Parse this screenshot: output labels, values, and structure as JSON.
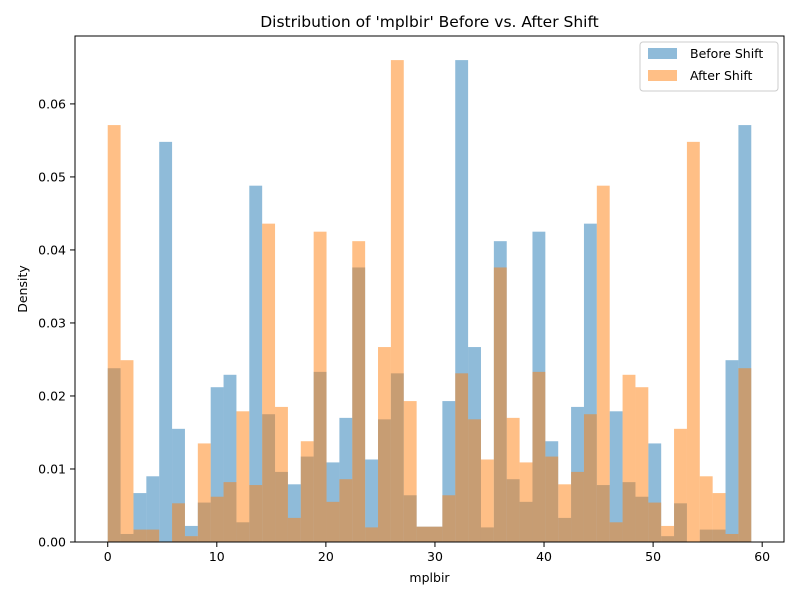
{
  "chart_data": {
    "type": "bar",
    "title": "Distribution of 'mplbir' Before vs. After Shift",
    "xlabel": "mplbir",
    "ylabel": "Density",
    "xlim": [
      -3.0,
      62.0
    ],
    "ylim": [
      0,
      0.0693
    ],
    "grid": false,
    "legend_position": "top-right",
    "bin_edges": [
      0.0,
      1.18,
      2.36,
      3.54,
      4.72,
      5.9,
      7.08,
      8.26,
      9.44,
      10.62,
      11.8,
      12.98,
      14.16,
      15.34,
      16.52,
      17.7,
      18.88,
      20.06,
      21.24,
      22.42,
      23.6,
      24.78,
      25.96,
      27.14,
      28.32,
      29.5,
      30.68,
      31.86,
      33.04,
      34.22,
      35.4,
      36.58,
      37.76,
      38.94,
      40.12,
      41.3,
      42.48,
      43.66,
      44.84,
      46.02,
      47.2,
      48.38,
      49.56,
      50.74,
      51.92,
      53.1,
      54.28,
      55.46,
      56.64,
      57.82,
      59.0
    ],
    "series": [
      {
        "name": "Before Shift",
        "color": "#1f77b4",
        "values": [
          0.0238,
          0.0011,
          0.0067,
          0.009,
          0.0548,
          0.0155,
          0.0022,
          0.0054,
          0.0212,
          0.0229,
          0.0027,
          0.0488,
          0.0175,
          0.0096,
          0.0079,
          0.0117,
          0.0233,
          0.0109,
          0.017,
          0.0376,
          0.0113,
          0.0168,
          0.0231,
          0.0064,
          0.0021,
          0.0021,
          0.0193,
          0.066,
          0.0267,
          0.002,
          0.0412,
          0.0086,
          0.0055,
          0.0425,
          0.0138,
          0.0033,
          0.0185,
          0.0436,
          0.0078,
          0.0179,
          0.0082,
          0.0062,
          0.0135,
          0.0008,
          0.0053,
          0.0,
          0.0017,
          0.0017,
          0.0249,
          0.0571
        ]
      },
      {
        "name": "After Shift",
        "color": "#ff7f0e",
        "values": [
          0.0571,
          0.0249,
          0.0017,
          0.0017,
          0.0,
          0.0053,
          0.0008,
          0.0135,
          0.0062,
          0.0082,
          0.0179,
          0.0078,
          0.0436,
          0.0185,
          0.0033,
          0.0138,
          0.0425,
          0.0055,
          0.0086,
          0.0412,
          0.002,
          0.0267,
          0.066,
          0.0193,
          0.0021,
          0.0021,
          0.0064,
          0.0231,
          0.0168,
          0.0113,
          0.0376,
          0.017,
          0.0109,
          0.0233,
          0.0117,
          0.0079,
          0.0096,
          0.0175,
          0.0488,
          0.0027,
          0.0229,
          0.0212,
          0.0054,
          0.0022,
          0.0155,
          0.0548,
          0.009,
          0.0067,
          0.0011,
          0.0238
        ]
      }
    ],
    "x_ticks": [
      0,
      10,
      20,
      30,
      40,
      50,
      60
    ],
    "x_tick_labels": [
      "0",
      "10",
      "20",
      "30",
      "40",
      "50",
      "60"
    ],
    "y_ticks": [
      0.0,
      0.01,
      0.02,
      0.03,
      0.04,
      0.05,
      0.06
    ],
    "y_tick_labels": [
      "0.00",
      "0.01",
      "0.02",
      "0.03",
      "0.04",
      "0.05",
      "0.06"
    ]
  }
}
